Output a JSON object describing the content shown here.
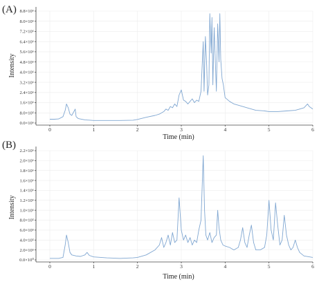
{
  "chart_data": [
    {
      "type": "line",
      "panel_label": "(A)",
      "xlabel": "Time (min)",
      "ylabel": "Intensity",
      "xlim": [
        0,
        6
      ],
      "ylim": [
        0,
        8.8
      ],
      "x_ticks": [
        "0",
        "1",
        "2",
        "3",
        "4",
        "5",
        "6"
      ],
      "x_tick_values": [
        0,
        1,
        2,
        3,
        4,
        5,
        6
      ],
      "y_ticks": [
        "0.0×10⁶",
        "8.0×10⁵",
        "1.6×10⁶",
        "2.4×10⁶",
        "3.2×10⁶",
        "4.0×10⁶",
        "4.8×10⁶",
        "5.6×10⁶",
        "6.4×10⁶",
        "7.2×10⁶",
        "8.0×10⁶",
        "8.8×10⁶"
      ],
      "y_tick_values": [
        0,
        0.8,
        1.6,
        2.4,
        3.2,
        4.0,
        4.8,
        5.6,
        6.4,
        7.2,
        8.0,
        8.8
      ],
      "grid": true,
      "color": "#7fa6d1",
      "points": [
        [
          0.0,
          0.3
        ],
        [
          0.1,
          0.3
        ],
        [
          0.2,
          0.32
        ],
        [
          0.3,
          0.5
        ],
        [
          0.35,
          1.0
        ],
        [
          0.38,
          1.5
        ],
        [
          0.42,
          1.2
        ],
        [
          0.46,
          0.7
        ],
        [
          0.5,
          0.6
        ],
        [
          0.55,
          0.9
        ],
        [
          0.58,
          1.1
        ],
        [
          0.6,
          0.5
        ],
        [
          0.65,
          0.35
        ],
        [
          0.8,
          0.25
        ],
        [
          1.0,
          0.2
        ],
        [
          1.3,
          0.2
        ],
        [
          1.6,
          0.2
        ],
        [
          1.9,
          0.22
        ],
        [
          2.0,
          0.28
        ],
        [
          2.2,
          0.45
        ],
        [
          2.4,
          0.6
        ],
        [
          2.5,
          0.7
        ],
        [
          2.6,
          0.9
        ],
        [
          2.65,
          1.1
        ],
        [
          2.7,
          1.0
        ],
        [
          2.75,
          1.3
        ],
        [
          2.8,
          1.2
        ],
        [
          2.85,
          1.5
        ],
        [
          2.9,
          1.3
        ],
        [
          2.95,
          2.2
        ],
        [
          3.0,
          2.6
        ],
        [
          3.05,
          1.8
        ],
        [
          3.1,
          1.7
        ],
        [
          3.15,
          1.5
        ],
        [
          3.2,
          1.7
        ],
        [
          3.25,
          1.9
        ],
        [
          3.3,
          1.6
        ],
        [
          3.35,
          1.8
        ],
        [
          3.4,
          1.7
        ],
        [
          3.45,
          2.5
        ],
        [
          3.5,
          6.4
        ],
        [
          3.52,
          2.5
        ],
        [
          3.55,
          6.8
        ],
        [
          3.58,
          4.5
        ],
        [
          3.6,
          2.2
        ],
        [
          3.63,
          3.0
        ],
        [
          3.65,
          8.6
        ],
        [
          3.68,
          5.5
        ],
        [
          3.7,
          8.3
        ],
        [
          3.72,
          3.0
        ],
        [
          3.75,
          7.5
        ],
        [
          3.78,
          4.5
        ],
        [
          3.8,
          2.5
        ],
        [
          3.83,
          7.8
        ],
        [
          3.86,
          4.8
        ],
        [
          3.88,
          8.6
        ],
        [
          3.9,
          5.0
        ],
        [
          3.93,
          3.5
        ],
        [
          3.96,
          3.0
        ],
        [
          4.0,
          2.0
        ],
        [
          4.1,
          1.7
        ],
        [
          4.2,
          1.5
        ],
        [
          4.3,
          1.4
        ],
        [
          4.4,
          1.3
        ],
        [
          4.5,
          1.2
        ],
        [
          4.7,
          1.0
        ],
        [
          4.9,
          0.95
        ],
        [
          5.0,
          0.9
        ],
        [
          5.2,
          0.9
        ],
        [
          5.4,
          0.95
        ],
        [
          5.6,
          1.0
        ],
        [
          5.7,
          1.1
        ],
        [
          5.8,
          1.2
        ],
        [
          5.88,
          1.5
        ],
        [
          5.92,
          1.3
        ],
        [
          6.0,
          1.1
        ]
      ]
    },
    {
      "type": "line",
      "panel_label": "(B)",
      "xlabel": "Time (min)",
      "ylabel": "Intensity",
      "xlim": [
        0,
        6
      ],
      "ylim": [
        0,
        22
      ],
      "x_ticks": [
        "0",
        "1",
        "2",
        "3",
        "4",
        "5",
        "6"
      ],
      "x_tick_values": [
        0,
        1,
        2,
        3,
        4,
        5,
        6
      ],
      "y_ticks": [
        "0.0×10⁰",
        "2.0×10⁵",
        "4.0×10⁵",
        "6.0×10⁵",
        "8.0×10⁵",
        "1.0×10⁶",
        "1.2×10⁶",
        "1.4×10⁶",
        "1.6×10⁶",
        "1.8×10⁶",
        "2.0×10⁶",
        "2.2×10⁶"
      ],
      "y_tick_values": [
        0,
        2,
        4,
        6,
        8,
        10,
        12,
        14,
        16,
        18,
        20,
        22
      ],
      "grid": true,
      "color": "#7fa6d1",
      "points": [
        [
          0.0,
          0.3
        ],
        [
          0.2,
          0.3
        ],
        [
          0.3,
          0.5
        ],
        [
          0.35,
          3.0
        ],
        [
          0.38,
          5.0
        ],
        [
          0.42,
          3.5
        ],
        [
          0.46,
          1.5
        ],
        [
          0.5,
          1.0
        ],
        [
          0.6,
          0.8
        ],
        [
          0.7,
          0.7
        ],
        [
          0.8,
          1.0
        ],
        [
          0.85,
          1.5
        ],
        [
          0.9,
          0.9
        ],
        [
          1.0,
          0.6
        ],
        [
          1.3,
          0.4
        ],
        [
          1.6,
          0.3
        ],
        [
          1.9,
          0.4
        ],
        [
          2.0,
          0.5
        ],
        [
          2.2,
          1.0
        ],
        [
          2.4,
          2.0
        ],
        [
          2.5,
          3.0
        ],
        [
          2.55,
          4.5
        ],
        [
          2.6,
          2.5
        ],
        [
          2.65,
          3.5
        ],
        [
          2.7,
          5.0
        ],
        [
          2.75,
          3.0
        ],
        [
          2.8,
          5.5
        ],
        [
          2.85,
          3.5
        ],
        [
          2.9,
          4.0
        ],
        [
          2.95,
          12.5
        ],
        [
          3.0,
          6.0
        ],
        [
          3.05,
          4.0
        ],
        [
          3.1,
          5.0
        ],
        [
          3.15,
          3.5
        ],
        [
          3.2,
          4.5
        ],
        [
          3.25,
          3.0
        ],
        [
          3.3,
          4.0
        ],
        [
          3.35,
          3.5
        ],
        [
          3.4,
          6.0
        ],
        [
          3.45,
          8.0
        ],
        [
          3.5,
          21.0
        ],
        [
          3.53,
          10.0
        ],
        [
          3.56,
          5.0
        ],
        [
          3.6,
          4.0
        ],
        [
          3.65,
          5.5
        ],
        [
          3.7,
          3.5
        ],
        [
          3.75,
          4.5
        ],
        [
          3.8,
          5.0
        ],
        [
          3.83,
          10.0
        ],
        [
          3.86,
          6.5
        ],
        [
          3.9,
          4.0
        ],
        [
          3.95,
          3.0
        ],
        [
          4.0,
          2.8
        ],
        [
          4.1,
          2.5
        ],
        [
          4.2,
          2.0
        ],
        [
          4.3,
          2.5
        ],
        [
          4.35,
          4.0
        ],
        [
          4.4,
          6.5
        ],
        [
          4.45,
          3.5
        ],
        [
          4.5,
          2.5
        ],
        [
          4.55,
          5.0
        ],
        [
          4.6,
          7.0
        ],
        [
          4.65,
          3.5
        ],
        [
          4.7,
          2.0
        ],
        [
          4.8,
          2.0
        ],
        [
          4.9,
          2.5
        ],
        [
          4.95,
          5.0
        ],
        [
          5.0,
          12.0
        ],
        [
          5.05,
          6.0
        ],
        [
          5.1,
          4.0
        ],
        [
          5.15,
          11.5
        ],
        [
          5.2,
          7.0
        ],
        [
          5.25,
          3.0
        ],
        [
          5.3,
          4.0
        ],
        [
          5.35,
          9.0
        ],
        [
          5.4,
          5.0
        ],
        [
          5.45,
          3.0
        ],
        [
          5.5,
          2.0
        ],
        [
          5.55,
          2.5
        ],
        [
          5.6,
          4.0
        ],
        [
          5.65,
          2.5
        ],
        [
          5.7,
          1.5
        ],
        [
          5.8,
          0.8
        ],
        [
          6.0,
          0.5
        ]
      ]
    }
  ]
}
